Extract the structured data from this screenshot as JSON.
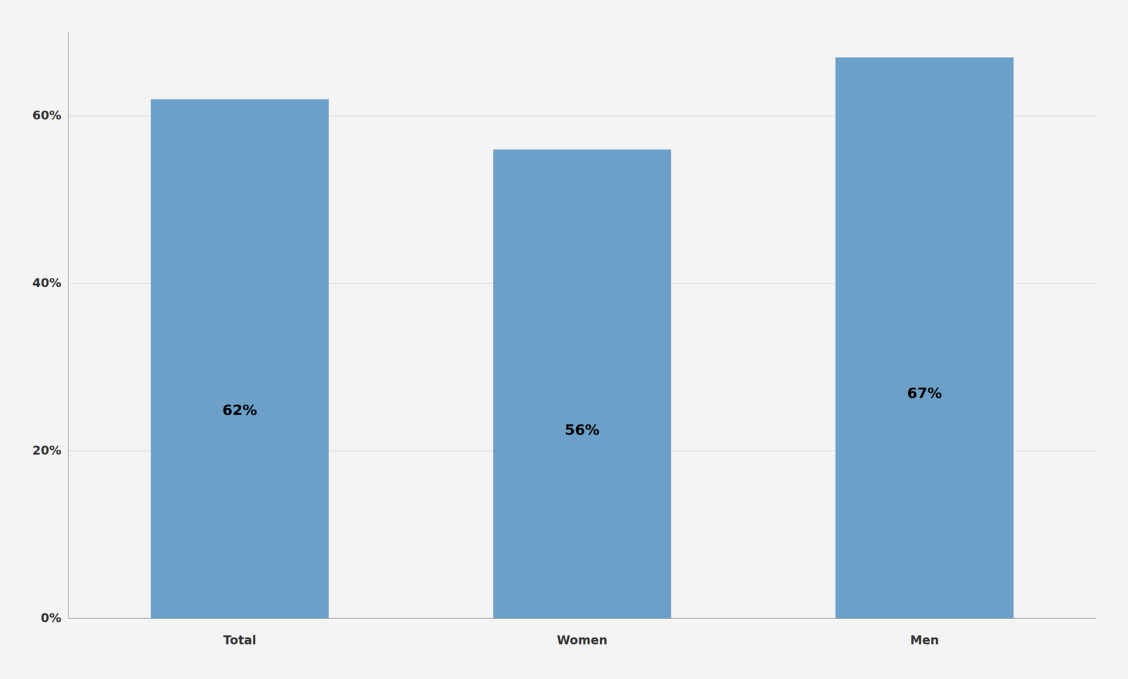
{
  "chart_data": {
    "type": "bar",
    "categories": [
      "Total",
      "Women",
      "Men"
    ],
    "values": [
      62,
      56,
      67
    ],
    "value_labels": [
      "62%",
      "56%",
      "67%"
    ],
    "data_labels": true,
    "color": "#6CA0C8",
    "ylim": [
      0,
      70
    ],
    "yticks": [
      {
        "value": 0,
        "label": "0%"
      },
      {
        "value": 20,
        "label": "20%"
      },
      {
        "value": 40,
        "label": "40%"
      },
      {
        "value": 60,
        "label": "60%"
      }
    ],
    "grid": true
  }
}
